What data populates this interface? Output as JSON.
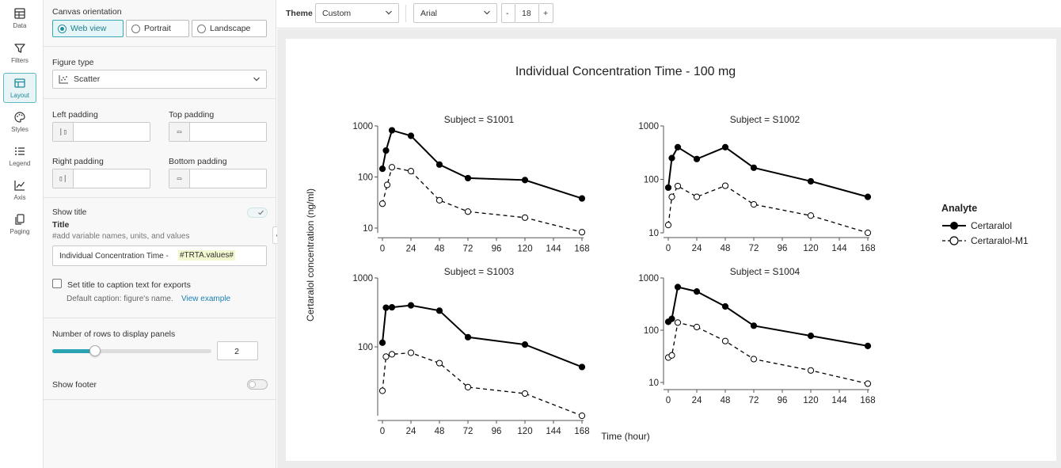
{
  "rail": [
    {
      "label": "Data",
      "icon": "table-icon"
    },
    {
      "label": "Filters",
      "icon": "filter-icon"
    },
    {
      "label": "Layout",
      "icon": "layout-icon",
      "active": true
    },
    {
      "label": "Styles",
      "icon": "palette-icon"
    },
    {
      "label": "Legend",
      "icon": "list-icon"
    },
    {
      "label": "Axis",
      "icon": "axis-icon"
    },
    {
      "label": "Paging",
      "icon": "pages-icon"
    }
  ],
  "panel": {
    "orientation_label": "Canvas orientation",
    "orientations": [
      "Web view",
      "Portrait",
      "Landscape"
    ],
    "figure_type_label": "Figure type",
    "figure_type_value": "Scatter",
    "left_padding_label": "Left padding",
    "top_padding_label": "Top padding",
    "right_padding_label": "Right padding",
    "bottom_padding_label": "Bottom padding",
    "show_title_label": "Show title",
    "title_label": "Title",
    "title_hint": "#add variable names, units, and values",
    "title_value_text": "Individual Concentration Time - ",
    "title_value_token": "#TRTA.values#",
    "caption_checkbox_label": "Set title to caption text for exports",
    "default_caption_text": "Default caption: figure's name.",
    "view_example_link": "View example",
    "rows_label": "Number of rows to display panels",
    "rows_value": "2",
    "rows_slider_fraction": 0.27,
    "show_footer_label": "Show footer"
  },
  "toolbar": {
    "theme_label": "Theme",
    "theme_value": "Custom",
    "font_value": "Arial",
    "font_size_minus": "-",
    "font_size": "18",
    "font_size_plus": "+"
  },
  "colors": {
    "accent": "#2aa3b2",
    "series_line": "#000000"
  },
  "chart_data": {
    "type": "scatter",
    "title": "Individual Concentration Time - 100 mg",
    "xlabel": "Time (hour)",
    "ylabel": "Certaralol concentration (ng/ml)",
    "x_ticks": [
      0,
      24,
      48,
      72,
      96,
      120,
      144,
      168
    ],
    "y_scale": "log",
    "legend_title": "Analyte",
    "legend_position": "right",
    "series_names": [
      "Certaralol",
      "Certaralol-M1"
    ],
    "panels": [
      {
        "title": "Subject = S1001",
        "y_ticks": [
          "1000",
          "100",
          "10"
        ],
        "ylim": [
          8,
          1000
        ],
        "series": [
          {
            "name": "Certaralol",
            "style": "solid-filled",
            "x": [
              0,
              3,
              8,
              24,
              48,
              72,
              120,
              168
            ],
            "y": [
              145,
              330,
              820,
              640,
              175,
              95,
              87,
              38
            ]
          },
          {
            "name": "Certaralol-M1",
            "style": "dashed-open",
            "x": [
              0,
              4,
              8,
              24,
              48,
              72,
              120,
              168
            ],
            "y": [
              30,
              70,
              155,
              130,
              35,
              21,
              16,
              8.3
            ]
          }
        ]
      },
      {
        "title": "Subject = S1002",
        "y_ticks": [
          "1000",
          "100",
          "10"
        ],
        "ylim": [
          10,
          1000
        ],
        "series": [
          {
            "name": "Certaralol",
            "style": "solid-filled",
            "x": [
              0,
              3,
              8,
              24,
              48,
              72,
              120,
              168
            ],
            "y": [
              70,
              250,
              400,
              240,
              400,
              165,
              92,
              47
            ]
          },
          {
            "name": "Certaralol-M1",
            "style": "dashed-open",
            "x": [
              0,
              3,
              8,
              24,
              48,
              72,
              120,
              168
            ],
            "y": [
              14,
              47,
              75,
              47,
              76,
              34,
              21,
              10
            ]
          }
        ]
      },
      {
        "title": "Subject = S1003",
        "y_ticks": [
          "1000",
          "100"
        ],
        "ylim": [
          10,
          1000
        ],
        "series": [
          {
            "name": "Certaralol",
            "style": "solid-filled",
            "x": [
              0,
              3,
              8,
              24,
              48,
              72,
              120,
              168
            ],
            "y": [
              115,
              370,
              375,
              400,
              335,
              138,
              108,
              51
            ]
          },
          {
            "name": "Certaralol-M1",
            "style": "dashed-open",
            "x": [
              0,
              3,
              8,
              24,
              48,
              72,
              120,
              168
            ],
            "y": [
              23,
              72,
              78,
              82,
              58,
              26,
              21,
              10
            ]
          }
        ]
      },
      {
        "title": "Subject = S1004",
        "y_ticks": [
          "1000",
          "100",
          "10"
        ],
        "ylim": [
          9,
          1000
        ],
        "series": [
          {
            "name": "Certaralol",
            "style": "solid-filled",
            "x": [
              0,
              3,
              8,
              24,
              48,
              72,
              120,
              168
            ],
            "y": [
              145,
              165,
              670,
              550,
              285,
              122,
              78,
              50
            ]
          },
          {
            "name": "Certaralol-M1",
            "style": "dashed-open",
            "x": [
              0,
              3,
              8,
              24,
              48,
              72,
              120,
              168
            ],
            "y": [
              30,
              33,
              140,
              115,
              62,
              28,
              17,
              9.5
            ]
          }
        ]
      }
    ]
  }
}
